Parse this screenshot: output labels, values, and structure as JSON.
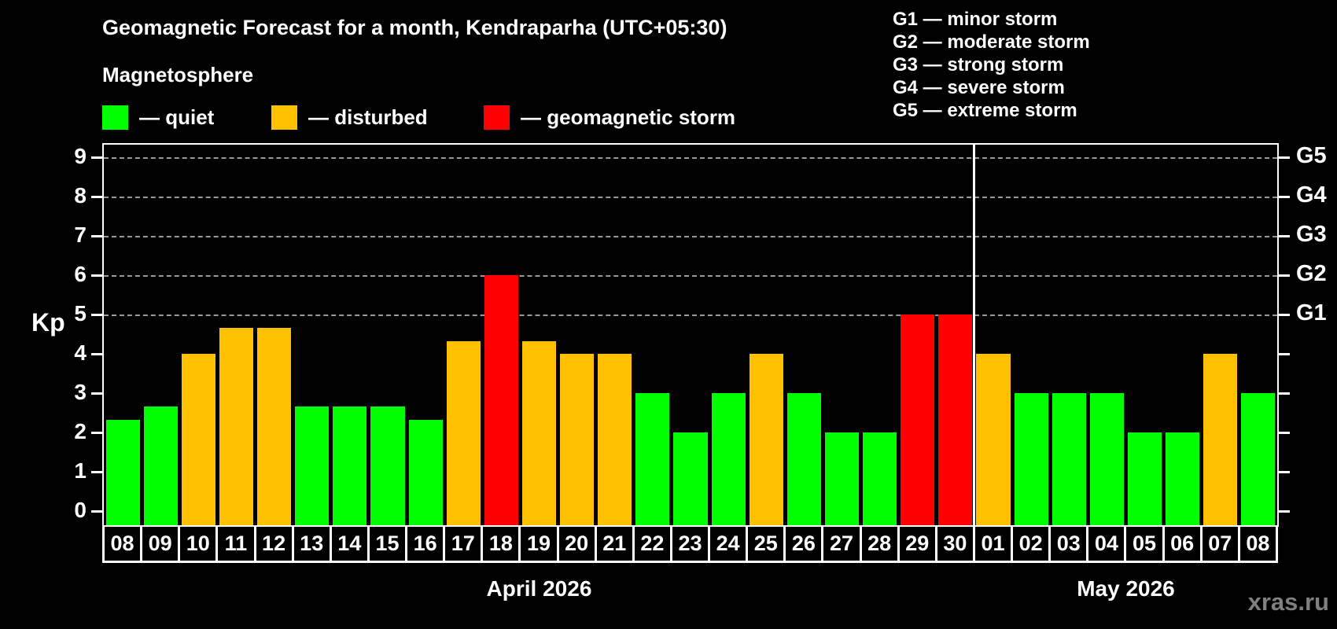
{
  "title": "Geomagnetic Forecast for a month, Kendraparha (UTC+05:30)",
  "subtitle": "Magnetosphere",
  "legend": {
    "items": [
      {
        "id": "quiet",
        "label": "— quiet",
        "color": "#00ff00"
      },
      {
        "id": "disturbed",
        "label": "— disturbed",
        "color": "#ffc000"
      },
      {
        "id": "storm",
        "label": "— geomagnetic storm",
        "color": "#ff0000"
      }
    ]
  },
  "storm_scale": [
    "G1 — minor storm",
    "G2 — moderate storm",
    "G3 — strong storm",
    "G4 — severe storm",
    "G5 — extreme storm"
  ],
  "watermark": "xras.ru",
  "colors": {
    "quiet": "#00ff00",
    "disturbed": "#ffc000",
    "storm": "#ff0000",
    "background": "#000000",
    "text": "#ffffff",
    "grid": "#9a9a9a",
    "watermark": "#808080"
  },
  "chart_data": {
    "type": "bar",
    "ylabel": "Kp",
    "ylim": [
      0,
      9.3
    ],
    "yticks": [
      0,
      1,
      2,
      3,
      4,
      5,
      6,
      7,
      8,
      9
    ],
    "gridlines": [
      5,
      6,
      7,
      8,
      9
    ],
    "right_axis_labels": [
      {
        "value": 5,
        "label": "G1"
      },
      {
        "value": 6,
        "label": "G2"
      },
      {
        "value": 7,
        "label": "G3"
      },
      {
        "value": 8,
        "label": "G4"
      },
      {
        "value": 9,
        "label": "G5"
      }
    ],
    "legend_position": "top-left",
    "months": [
      {
        "label": "April 2026",
        "days": 23
      },
      {
        "label": "May 2026",
        "days": 8
      }
    ],
    "bars": [
      {
        "day": "08",
        "value": 2.33,
        "status": "quiet"
      },
      {
        "day": "09",
        "value": 2.67,
        "status": "quiet"
      },
      {
        "day": "10",
        "value": 4.0,
        "status": "disturbed"
      },
      {
        "day": "11",
        "value": 4.67,
        "status": "disturbed"
      },
      {
        "day": "12",
        "value": 4.67,
        "status": "disturbed"
      },
      {
        "day": "13",
        "value": 2.67,
        "status": "quiet"
      },
      {
        "day": "14",
        "value": 2.67,
        "status": "quiet"
      },
      {
        "day": "15",
        "value": 2.67,
        "status": "quiet"
      },
      {
        "day": "16",
        "value": 2.33,
        "status": "quiet"
      },
      {
        "day": "17",
        "value": 4.33,
        "status": "disturbed"
      },
      {
        "day": "18",
        "value": 6.0,
        "status": "storm"
      },
      {
        "day": "19",
        "value": 4.33,
        "status": "disturbed"
      },
      {
        "day": "20",
        "value": 4.0,
        "status": "disturbed"
      },
      {
        "day": "21",
        "value": 4.0,
        "status": "disturbed"
      },
      {
        "day": "22",
        "value": 3.0,
        "status": "quiet"
      },
      {
        "day": "23",
        "value": 2.0,
        "status": "quiet"
      },
      {
        "day": "24",
        "value": 3.0,
        "status": "quiet"
      },
      {
        "day": "25",
        "value": 4.0,
        "status": "disturbed"
      },
      {
        "day": "26",
        "value": 3.0,
        "status": "quiet"
      },
      {
        "day": "27",
        "value": 2.0,
        "status": "quiet"
      },
      {
        "day": "28",
        "value": 2.0,
        "status": "quiet"
      },
      {
        "day": "29",
        "value": 5.0,
        "status": "storm"
      },
      {
        "day": "30",
        "value": 5.0,
        "status": "storm"
      },
      {
        "day": "01",
        "value": 4.0,
        "status": "disturbed"
      },
      {
        "day": "02",
        "value": 3.0,
        "status": "quiet"
      },
      {
        "day": "03",
        "value": 3.0,
        "status": "quiet"
      },
      {
        "day": "04",
        "value": 3.0,
        "status": "quiet"
      },
      {
        "day": "05",
        "value": 2.0,
        "status": "quiet"
      },
      {
        "day": "06",
        "value": 2.0,
        "status": "quiet"
      },
      {
        "day": "07",
        "value": 4.0,
        "status": "disturbed"
      },
      {
        "day": "08",
        "value": 3.0,
        "status": "quiet"
      }
    ]
  }
}
